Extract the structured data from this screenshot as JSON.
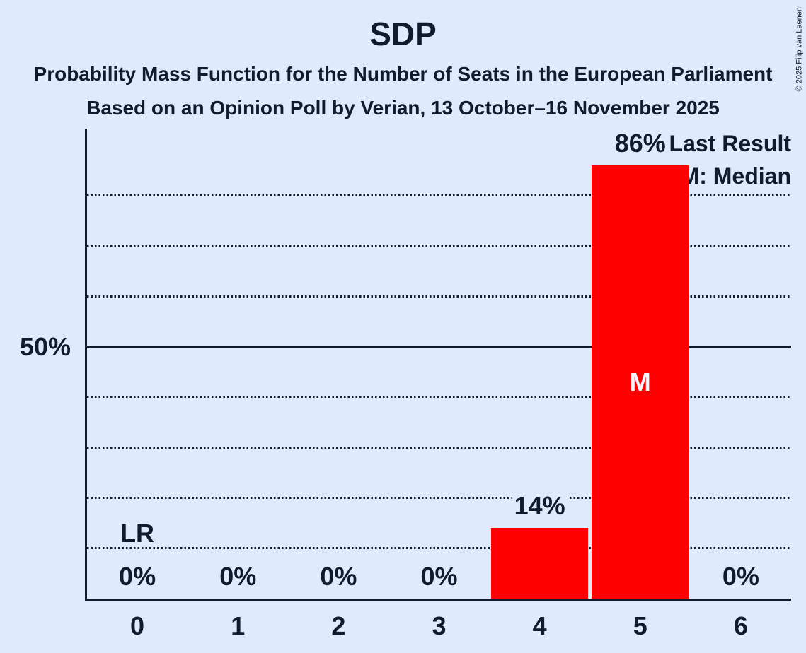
{
  "header": {
    "title": "SDP",
    "subtitle1": "Probability Mass Function for the Number of Seats in the European Parliament",
    "subtitle2": "Based on an Opinion Poll by Verian, 13 October–16 November 2025"
  },
  "copyright": "© 2025 Filip van Laenen",
  "legend": {
    "lr": "LR: Last Result",
    "m": "M: Median"
  },
  "y_axis": {
    "tick_label": "50%",
    "tick_pct": 50
  },
  "annotations": {
    "last_result": "LR",
    "median": "M"
  },
  "colors": {
    "background": "#dfeafb",
    "ink": "#0e1c2e",
    "bar": "#ff0000",
    "median_text": "#f2f6ff"
  },
  "chart_data": {
    "type": "bar",
    "title": "SDP",
    "xlabel": "",
    "ylabel": "",
    "categories": [
      "0",
      "1",
      "2",
      "3",
      "4",
      "5",
      "6"
    ],
    "values": [
      0,
      0,
      0,
      0,
      14,
      86,
      0
    ],
    "bar_labels": [
      "0%",
      "0%",
      "0%",
      "0%",
      "14%",
      "86%",
      "0%"
    ],
    "ylim": [
      0,
      93.3
    ],
    "gridlines_dotted_pct": [
      10,
      20,
      30,
      40,
      60,
      70,
      80
    ],
    "gridline_solid_pct": 50,
    "last_result_index": 0,
    "median_index": 5,
    "legend_position": "top-right",
    "grid": "horizontal dotted"
  }
}
